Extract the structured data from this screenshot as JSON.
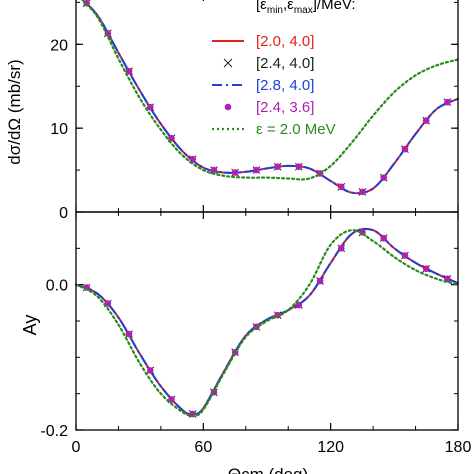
{
  "legend": {
    "header": "[ε_min,ε_max]/MeV:",
    "header_main": "[ε",
    "header_sub1": "min",
    "header_mid": ",ε",
    "header_sub2": "max",
    "header_tail": "]/MeV:"
  },
  "chart_data": [
    {
      "type": "line",
      "panel": "top",
      "ylabel": "dσ/dΩ (mb/sr)",
      "xlim": [
        0,
        180
      ],
      "ylim": [
        0,
        26
      ],
      "yticks": [
        0,
        10,
        20
      ],
      "ytick_labels": [
        "0",
        "10",
        "20"
      ],
      "xticks": [
        0,
        60,
        120,
        180
      ],
      "legend_position": "top-right",
      "series": [
        {
          "name": "[2.0, 4.0]",
          "color": "#e8201c",
          "style": "solid",
          "x": [
            0,
            10,
            20,
            30,
            40,
            50,
            60,
            70,
            80,
            90,
            100,
            110,
            120,
            130,
            140,
            150,
            160,
            170,
            180
          ],
          "y": [
            26,
            23.5,
            19,
            14.5,
            10.5,
            7.3,
            5.3,
            4.7,
            4.8,
            5.2,
            5.5,
            5.2,
            3.7,
            2.3,
            2.8,
            5.8,
            9.3,
            12.3,
            13.5
          ]
        },
        {
          "name": "[2.4, 4.0]",
          "color": "#222222",
          "style": "cross",
          "x": [
            5,
            15,
            25,
            35,
            45,
            55,
            65,
            75,
            85,
            95,
            105,
            115,
            125,
            135,
            145,
            155,
            165,
            175
          ],
          "y": [
            24.9,
            21.3,
            16.8,
            12.5,
            8.8,
            6.3,
            5.0,
            4.7,
            5.0,
            5.4,
            5.4,
            4.6,
            3.0,
            2.4,
            4.1,
            7.5,
            10.9,
            13.1
          ]
        },
        {
          "name": "[2.8, 4.0]",
          "color": "#1f3fd6",
          "style": "dashdot",
          "x": [
            0,
            10,
            20,
            30,
            40,
            50,
            60,
            70,
            80,
            90,
            100,
            110,
            120,
            130,
            140,
            150,
            160,
            170,
            180
          ],
          "y": [
            26,
            23.5,
            19,
            14.5,
            10.5,
            7.3,
            5.3,
            4.7,
            4.8,
            5.2,
            5.5,
            5.2,
            3.7,
            2.3,
            2.8,
            5.8,
            9.3,
            12.3,
            13.5
          ]
        },
        {
          "name": "[2.4, 3.6]",
          "color": "#b21fb2",
          "style": "dot",
          "x": [
            5,
            15,
            25,
            35,
            45,
            55,
            65,
            75,
            85,
            95,
            105,
            115,
            125,
            135,
            145,
            155,
            165,
            175
          ],
          "y": [
            24.9,
            21.3,
            16.8,
            12.5,
            8.8,
            6.3,
            5.0,
            4.7,
            5.0,
            5.4,
            5.4,
            4.6,
            3.0,
            2.4,
            4.1,
            7.5,
            10.9,
            13.1
          ]
        },
        {
          "name": "ε = 2.0 MeV",
          "color": "#2a8a1f",
          "style": "dotted",
          "x": [
            0,
            10,
            20,
            30,
            40,
            50,
            60,
            70,
            80,
            90,
            100,
            110,
            120,
            130,
            140,
            150,
            160,
            170,
            180
          ],
          "y": [
            26,
            23.3,
            18.3,
            13.6,
            9.8,
            6.8,
            5.0,
            4.3,
            4.1,
            4.1,
            4.0,
            4.0,
            5.5,
            8.3,
            11.5,
            14.3,
            16.3,
            17.5,
            18.2
          ]
        }
      ]
    },
    {
      "type": "line",
      "panel": "bottom",
      "ylabel": "Ay",
      "xlabel": "Θcm (deg)",
      "xlim": [
        0,
        180
      ],
      "ylim": [
        -0.2,
        0.1
      ],
      "yticks": [
        -0.2,
        0.0
      ],
      "ytick_labels": [
        "-0.2",
        "0.0"
      ],
      "xticks": [
        0,
        60,
        120,
        180
      ],
      "xtick_labels": [
        "0",
        "60",
        "120",
        "180"
      ],
      "series": [
        {
          "name": "[2.0, 4.0]",
          "color": "#e8201c",
          "style": "solid",
          "x": [
            0,
            10,
            20,
            30,
            40,
            50,
            55,
            60,
            70,
            80,
            90,
            100,
            110,
            120,
            130,
            140,
            150,
            160,
            170,
            180
          ],
          "y": [
            0,
            -0.012,
            -0.045,
            -0.095,
            -0.14,
            -0.172,
            -0.178,
            -0.17,
            -0.118,
            -0.07,
            -0.048,
            -0.035,
            -0.015,
            0.03,
            0.07,
            0.075,
            0.05,
            0.03,
            0.015,
            0.002
          ]
        },
        {
          "name": "[2.4, 4.0]",
          "color": "#222222",
          "style": "cross",
          "x": [
            5,
            15,
            25,
            35,
            45,
            55,
            65,
            75,
            85,
            95,
            105,
            115,
            125,
            135,
            145,
            155,
            165,
            175
          ],
          "y": [
            -0.004,
            -0.026,
            -0.068,
            -0.118,
            -0.158,
            -0.178,
            -0.148,
            -0.093,
            -0.058,
            -0.042,
            -0.028,
            0.005,
            0.05,
            0.072,
            0.064,
            0.04,
            0.022,
            0.008
          ]
        },
        {
          "name": "[2.8, 4.0]",
          "color": "#1f3fd6",
          "style": "dashdot",
          "x": [
            0,
            10,
            20,
            30,
            40,
            50,
            55,
            60,
            70,
            80,
            90,
            100,
            110,
            120,
            130,
            140,
            150,
            160,
            170,
            180
          ],
          "y": [
            0,
            -0.012,
            -0.045,
            -0.095,
            -0.14,
            -0.172,
            -0.178,
            -0.17,
            -0.118,
            -0.07,
            -0.048,
            -0.035,
            -0.015,
            0.03,
            0.07,
            0.075,
            0.05,
            0.03,
            0.015,
            0.002
          ]
        },
        {
          "name": "[2.4, 3.6]",
          "color": "#b21fb2",
          "style": "dot",
          "x": [
            5,
            15,
            25,
            35,
            45,
            55,
            65,
            75,
            85,
            95,
            105,
            115,
            125,
            135,
            145,
            155,
            165,
            175
          ],
          "y": [
            -0.004,
            -0.026,
            -0.068,
            -0.118,
            -0.158,
            -0.178,
            -0.148,
            -0.093,
            -0.058,
            -0.042,
            -0.028,
            0.005,
            0.05,
            0.072,
            0.064,
            0.04,
            0.022,
            0.008
          ]
        },
        {
          "name": "ε = 2.0 MeV",
          "color": "#2a8a1f",
          "style": "dotted",
          "x": [
            0,
            10,
            20,
            30,
            40,
            50,
            55,
            60,
            70,
            80,
            90,
            100,
            110,
            120,
            130,
            140,
            150,
            160,
            170,
            180
          ],
          "y": [
            0,
            -0.016,
            -0.055,
            -0.108,
            -0.15,
            -0.175,
            -0.18,
            -0.172,
            -0.12,
            -0.072,
            -0.05,
            -0.035,
            0.0,
            0.055,
            0.075,
            0.06,
            0.038,
            0.02,
            0.008,
            0.0
          ]
        }
      ]
    }
  ]
}
